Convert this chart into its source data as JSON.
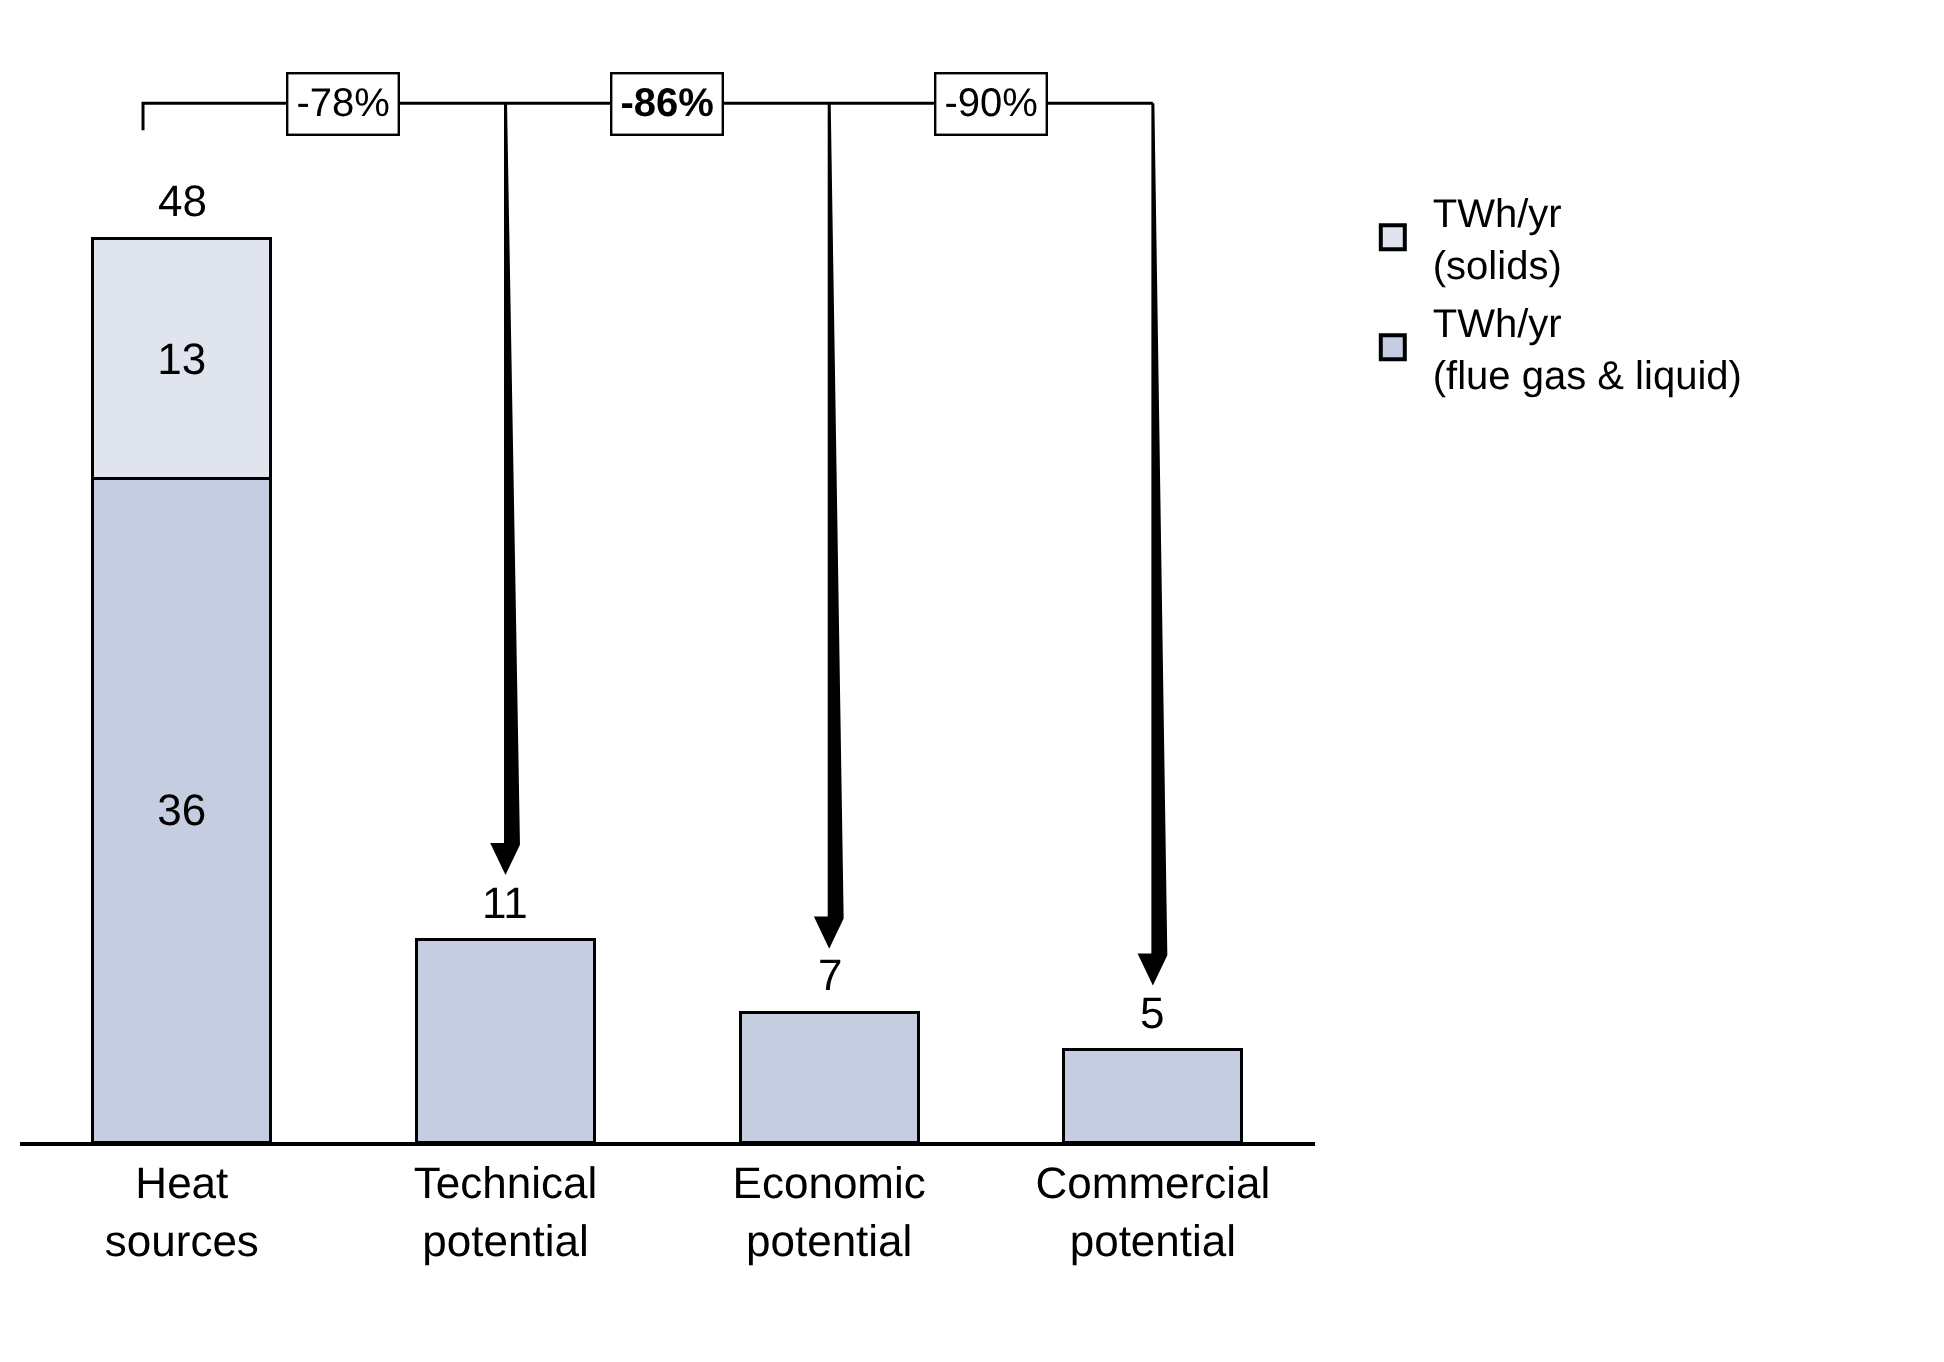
{
  "chart_data": {
    "type": "bar",
    "stacked": true,
    "categories": [
      "Heat\nsources",
      "Technical\npotential",
      "Economic\npotential",
      "Commercial\npotential"
    ],
    "series": [
      {
        "name": "TWh/yr\n(flue gas & liquid)",
        "color": "#c5cde0",
        "values": [
          36,
          11,
          7,
          5
        ],
        "value_labels": [
          "36",
          null,
          null,
          null
        ]
      },
      {
        "name": "TWh/yr\n(solids)",
        "color": "#dfe4ee",
        "values": [
          13,
          null,
          null,
          null
        ],
        "value_labels": [
          "13",
          null,
          null,
          null
        ]
      }
    ],
    "totals": [
      "48",
      "11",
      "7",
      "5"
    ],
    "annotations": [
      "-78%",
      "-86%",
      "-90%"
    ],
    "legend": "right"
  }
}
